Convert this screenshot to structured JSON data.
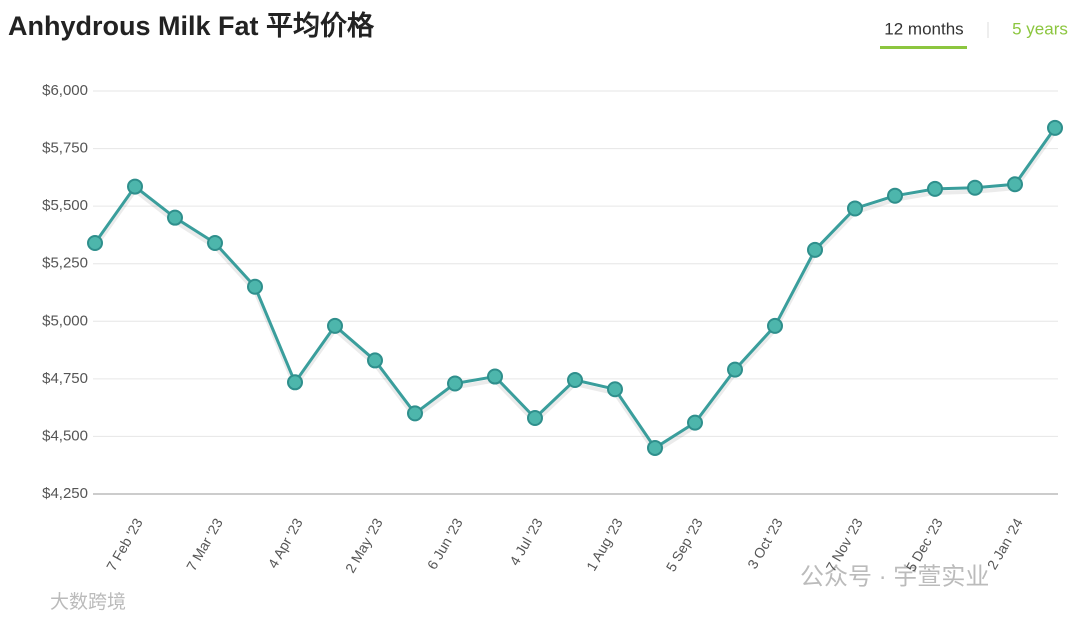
{
  "chart_data": {
    "type": "line",
    "title": "Anhydrous Milk Fat 平均价格",
    "tabs": [
      "12 months",
      "5 years"
    ],
    "watermarks": [
      "公众号 · 宇萱实业",
      "大数跨境"
    ],
    "categories": [
      null,
      "7 Feb '23",
      null,
      "7 Mar '23",
      null,
      "4 Apr '23",
      null,
      "2 May '23",
      null,
      "6 Jun '23",
      null,
      "4 Jul '23",
      null,
      "1 Aug '23",
      null,
      "5 Sep '23",
      null,
      "3 Oct '23",
      null,
      "7 Nov '23",
      null,
      "5 Dec '23",
      null,
      "2 Jan '24",
      null
    ],
    "series": [
      {
        "name": "Anhydrous Milk Fat",
        "color": "#3a9e9c",
        "values": [
          5340,
          5585,
          5450,
          5340,
          5150,
          4735,
          4980,
          4830,
          4600,
          4730,
          4760,
          4580,
          4745,
          4705,
          4450,
          4560,
          4790,
          4980,
          5310,
          5490,
          5545,
          5575,
          5580,
          5595,
          5840
        ]
      }
    ],
    "ylim": [
      4250,
      6000
    ],
    "yticks": [
      {
        "value": 4250,
        "label": "$4,250"
      },
      {
        "value": 4500,
        "label": "$4,500"
      },
      {
        "value": 4750,
        "label": "$4,750"
      },
      {
        "value": 5000,
        "label": "$5,000"
      },
      {
        "value": 5250,
        "label": "$5,250"
      },
      {
        "value": 5500,
        "label": "$5,500"
      },
      {
        "value": 5750,
        "label": "$5,750"
      },
      {
        "value": 6000,
        "label": "$6,000"
      }
    ],
    "grid": true
  }
}
